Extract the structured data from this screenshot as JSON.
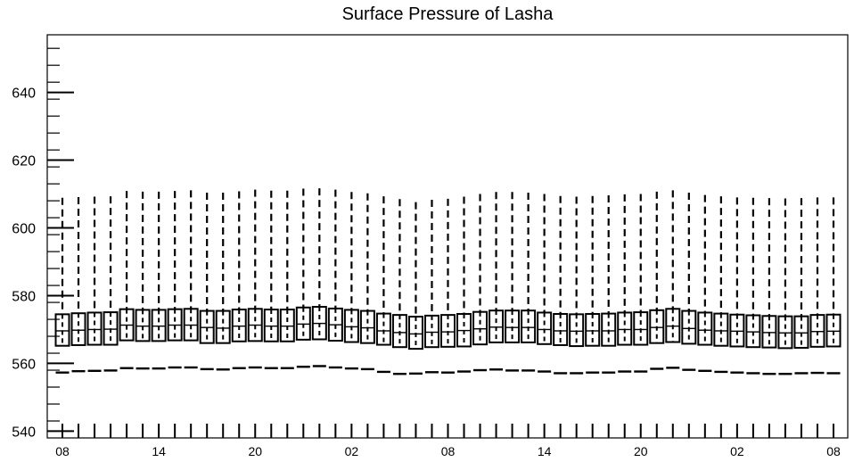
{
  "chart_data": {
    "type": "box",
    "title": "Surface Pressure of Lasha",
    "xlabel": "",
    "ylabel": "",
    "ylim": [
      538,
      657
    ],
    "yticks": [
      540,
      560,
      580,
      600,
      620,
      640
    ],
    "xtick_labels": [
      "08",
      "14",
      "20",
      "02",
      "08",
      "14",
      "20",
      "02",
      "08"
    ],
    "xtick_positions": [
      0,
      6,
      12,
      18,
      24,
      30,
      36,
      42,
      48
    ],
    "x": [
      0,
      1,
      2,
      3,
      4,
      5,
      6,
      7,
      8,
      9,
      10,
      11,
      12,
      13,
      14,
      15,
      16,
      17,
      18,
      19,
      20,
      21,
      22,
      23,
      24,
      25,
      26,
      27,
      28,
      29,
      30,
      31,
      32,
      33,
      34,
      35,
      36,
      37,
      38,
      39,
      40,
      41,
      42,
      43,
      44,
      45,
      46,
      47,
      48
    ],
    "whisker_low": [
      557.3,
      557.7,
      557.8,
      557.9,
      558.6,
      558.5,
      558.5,
      558.8,
      558.8,
      558.3,
      558.2,
      558.6,
      558.8,
      558.6,
      558.6,
      559.0,
      559.2,
      558.8,
      558.5,
      558.3,
      557.5,
      556.9,
      557.0,
      557.4,
      557.3,
      557.6,
      558.0,
      558.2,
      557.9,
      557.9,
      557.6,
      557.1,
      557.1,
      557.3,
      557.3,
      557.6,
      557.6,
      558.4,
      558.7,
      558.1,
      557.8,
      557.5,
      557.3,
      557.1,
      556.9,
      556.9,
      557.1,
      557.2,
      557.1
    ],
    "q1": [
      565.2,
      565.4,
      565.5,
      565.5,
      566.8,
      566.6,
      566.6,
      566.8,
      566.8,
      566.0,
      566.0,
      566.5,
      566.6,
      566.5,
      566.5,
      567.0,
      567.1,
      566.7,
      566.3,
      566.0,
      565.5,
      564.8,
      564.3,
      564.8,
      564.9,
      565.0,
      565.6,
      566.2,
      566.2,
      566.2,
      565.7,
      565.4,
      565.1,
      565.2,
      565.2,
      565.5,
      565.5,
      566.0,
      566.3,
      565.8,
      565.5,
      565.2,
      565.0,
      564.8,
      564.7,
      564.5,
      564.6,
      564.9,
      565.0
    ],
    "median": [
      569.6,
      569.8,
      570.0,
      570.1,
      571.3,
      571.0,
      571.0,
      571.3,
      571.3,
      570.6,
      570.4,
      571.0,
      571.3,
      571.0,
      571.0,
      571.6,
      571.8,
      571.4,
      570.8,
      570.5,
      569.6,
      569.1,
      568.7,
      569.2,
      569.3,
      569.7,
      570.2,
      570.7,
      570.6,
      570.6,
      570.0,
      569.6,
      569.5,
      569.6,
      569.6,
      570.0,
      570.0,
      570.6,
      571.0,
      570.3,
      569.8,
      569.6,
      569.5,
      569.3,
      569.1,
      569.0,
      569.0,
      569.4,
      569.5
    ],
    "q3": [
      574.5,
      574.8,
      575.0,
      575.1,
      576.0,
      575.8,
      575.8,
      576.0,
      576.1,
      575.5,
      575.5,
      575.9,
      576.1,
      575.9,
      575.9,
      576.5,
      576.7,
      576.2,
      575.8,
      575.5,
      574.7,
      574.3,
      573.8,
      574.1,
      574.3,
      574.6,
      575.2,
      575.6,
      575.6,
      575.6,
      575.0,
      574.6,
      574.5,
      574.6,
      574.7,
      575.0,
      575.1,
      575.7,
      576.1,
      575.5,
      575.0,
      574.7,
      574.4,
      574.2,
      574.0,
      573.9,
      573.9,
      574.3,
      574.4
    ],
    "whisker_high": [
      608.9,
      609.1,
      609.2,
      609.3,
      610.9,
      610.7,
      610.7,
      610.9,
      611.1,
      610.4,
      610.4,
      610.8,
      611.3,
      611.0,
      611.0,
      611.6,
      611.7,
      611.3,
      610.6,
      610.2,
      609.3,
      608.5,
      607.6,
      608.3,
      608.6,
      609.2,
      610.0,
      610.6,
      610.6,
      610.4,
      610.0,
      609.4,
      609.2,
      609.4,
      609.6,
      609.9,
      610.0,
      610.7,
      611.1,
      610.4,
      609.7,
      609.3,
      609.0,
      608.9,
      608.8,
      608.7,
      608.8,
      609.0,
      609.0
    ]
  }
}
